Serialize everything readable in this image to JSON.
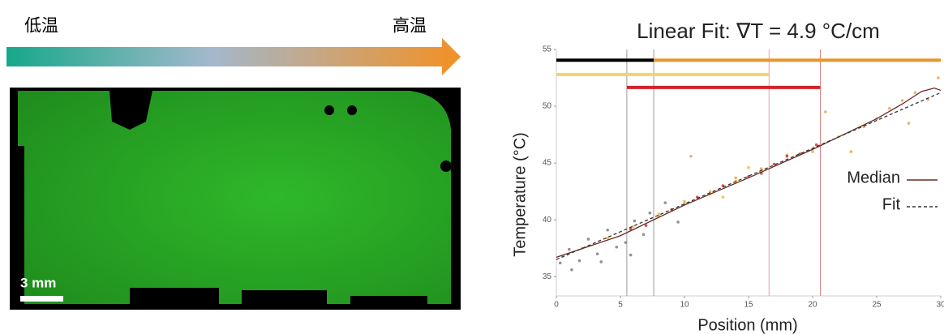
{
  "figure": {
    "cold_label": "低温",
    "hot_label": "高温",
    "scale_label": "3 mm"
  },
  "chart_data": {
    "type": "scatter",
    "title": "Linear Fit:  ∇T = 4.9 °C/cm",
    "x_label": "Position (mm)",
    "y_label": "Temperature (°C)",
    "xlim": [
      0,
      30
    ],
    "xticks": [
      0,
      5,
      10,
      15,
      20,
      25,
      30
    ],
    "ylim": [
      33.3,
      55
    ],
    "yticks": [
      35,
      40,
      45,
      50,
      55
    ],
    "legend": "right",
    "series": [
      {
        "name": "Median",
        "color": "#6b2a22",
        "style": "solid",
        "x": [
          0,
          5,
          10,
          15,
          20,
          25,
          27,
          28.5,
          29.5,
          30
        ],
        "values": [
          36.7,
          38.6,
          41.3,
          43.7,
          46.2,
          48.9,
          50.2,
          51.3,
          51.6,
          51.4
        ]
      },
      {
        "name": "Fit",
        "color": "#333333",
        "style": "dashed",
        "x": [
          0,
          30
        ],
        "values": [
          36.5,
          51.2
        ]
      }
    ],
    "scatter_groups": [
      {
        "color": "#777777",
        "x": [
          0.3,
          1,
          1.8,
          2.5,
          3.2,
          4,
          4.7,
          5.4,
          6.1,
          6.8,
          7.3,
          1.2,
          3.5,
          5.8,
          8.5,
          9.5
        ],
        "values": [
          36.2,
          37.4,
          36.4,
          38.3,
          37.0,
          39.1,
          37.6,
          38.0,
          39.9,
          38.7,
          40.6,
          35.6,
          36.3,
          36.9,
          41.5,
          39.8
        ]
      },
      {
        "color": "#f5b025",
        "x": [
          0.5,
          2,
          4,
          6,
          8,
          10,
          12,
          14,
          16,
          13,
          15
        ],
        "values": [
          36.8,
          37.5,
          38.4,
          39.4,
          40.5,
          41.4,
          42.3,
          43.4,
          44.4,
          42.0,
          44.6
        ]
      },
      {
        "color": "#e8a040",
        "x": [
          8,
          10,
          12,
          14,
          16,
          18,
          20,
          22,
          24,
          25,
          26,
          27,
          28,
          29,
          29.8,
          10.5,
          21,
          23,
          27.5
        ],
        "values": [
          40.3,
          41.6,
          42.5,
          43.7,
          44.5,
          45.7,
          46.0,
          47.3,
          48.2,
          48.9,
          49.8,
          50.5,
          51.2,
          50.6,
          52.5,
          45.6,
          49.5,
          46.0,
          48.5
        ]
      },
      {
        "color": "#d8202a",
        "x": [
          5.8,
          7,
          9,
          11,
          13,
          15,
          17,
          19,
          20.3,
          18,
          16
        ],
        "values": [
          39.2,
          39.5,
          40.9,
          42.0,
          43.0,
          43.8,
          44.9,
          45.8,
          46.6,
          45.6,
          44.1
        ]
      }
    ],
    "ranges": [
      {
        "color": "#000000",
        "x": [
          0,
          7.6
        ],
        "y": 54.05
      },
      {
        "color": "#e8962a",
        "x": [
          7.6,
          30
        ],
        "y": 54.05
      },
      {
        "color": "#f9cf6a",
        "x": [
          0,
          16.6
        ],
        "y": 52.8
      },
      {
        "color": "#d8202a",
        "x": [
          5.5,
          20.6
        ],
        "y": 51.65
      }
    ],
    "markers": {
      "x": [
        5.5,
        7.6,
        16.6,
        20.6
      ],
      "colors": [
        "#999999",
        "#999999",
        "#e8a0a0",
        "#e08080"
      ]
    }
  }
}
